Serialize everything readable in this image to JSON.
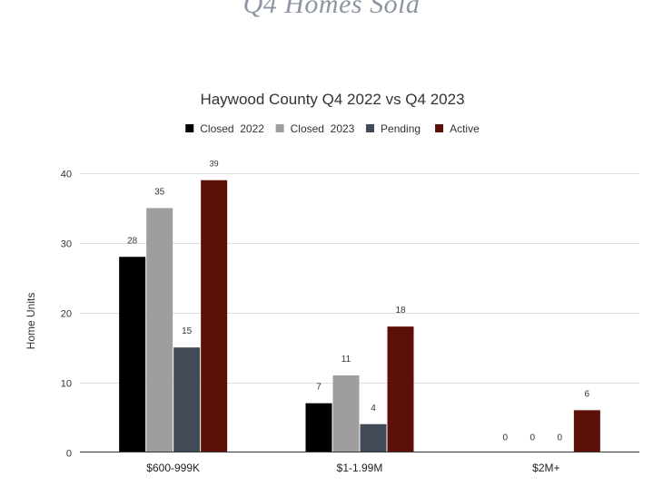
{
  "page": {
    "heading": "Q4 Homes Sold"
  },
  "chart_data": {
    "type": "bar",
    "title": "Haywood County Q4 2022 vs Q4 2023",
    "xlabel": "",
    "ylabel": "Home Units",
    "ylim": [
      0,
      40
    ],
    "yticks": [
      0,
      10,
      20,
      30,
      40
    ],
    "grid": true,
    "legend_position": "top",
    "categories": [
      "$600-999K",
      "$1-1.99M",
      "$2M+"
    ],
    "series": [
      {
        "name": "Closed  2022",
        "color": "#000000",
        "values": [
          28,
          7,
          0
        ]
      },
      {
        "name": "Closed  2023",
        "color": "#9e9e9e",
        "values": [
          35,
          11,
          0
        ]
      },
      {
        "name": "Pending",
        "color": "#414a56",
        "values": [
          15,
          4,
          0
        ]
      },
      {
        "name": "Active",
        "color": "#5c1007",
        "values": [
          39,
          18,
          6
        ]
      }
    ]
  }
}
